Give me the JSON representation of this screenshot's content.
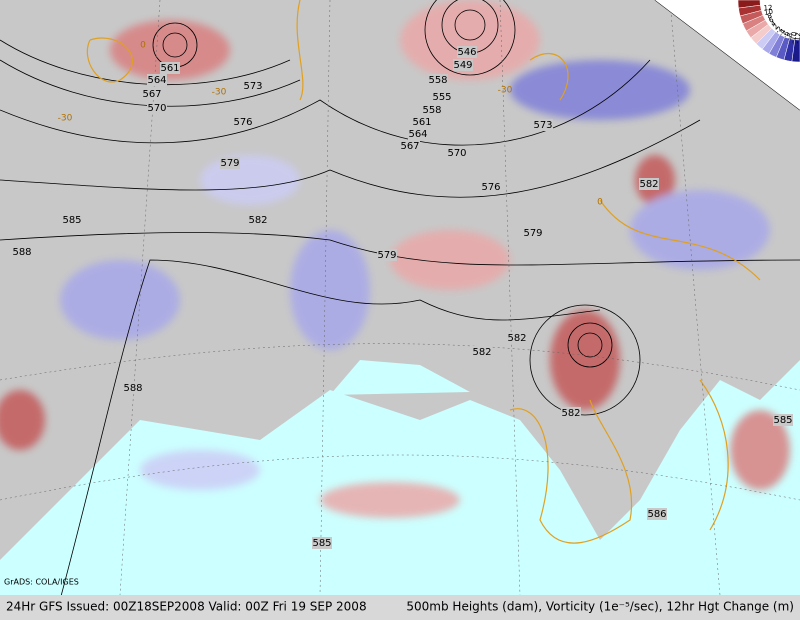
{
  "credit": "GrADS: COLA/IGES",
  "footer": {
    "left": "24Hr GFS Issued: 00Z18SEP2008 Valid: 00Z Fri 19 SEP 2008",
    "right": "500mb Heights (dam), Vorticity (1e⁻⁵/sec), 12hr Hgt Change (m)"
  },
  "colorbar": {
    "levels": [
      12,
      10,
      8,
      6,
      4,
      2,
      -2,
      -4,
      -6,
      -8,
      -10,
      -12
    ],
    "colors": [
      "#8b1a1a",
      "#a83232",
      "#c45a5a",
      "#d98080",
      "#eaa8a8",
      "#f5cccc",
      "#ccccf5",
      "#a8a8ea",
      "#8080d9",
      "#5a5ac4",
      "#3232a8",
      "#1a1a8b"
    ]
  },
  "contour_labels": [
    561,
    564,
    567,
    570,
    573,
    576,
    579,
    582,
    585,
    588,
    546,
    549,
    558,
    555,
    558,
    561,
    564,
    567,
    570,
    573,
    576,
    579,
    579,
    582,
    582,
    582,
    582,
    588,
    585,
    586,
    585
  ],
  "change_labels": [
    -30,
    -30,
    -30,
    0,
    0
  ]
}
